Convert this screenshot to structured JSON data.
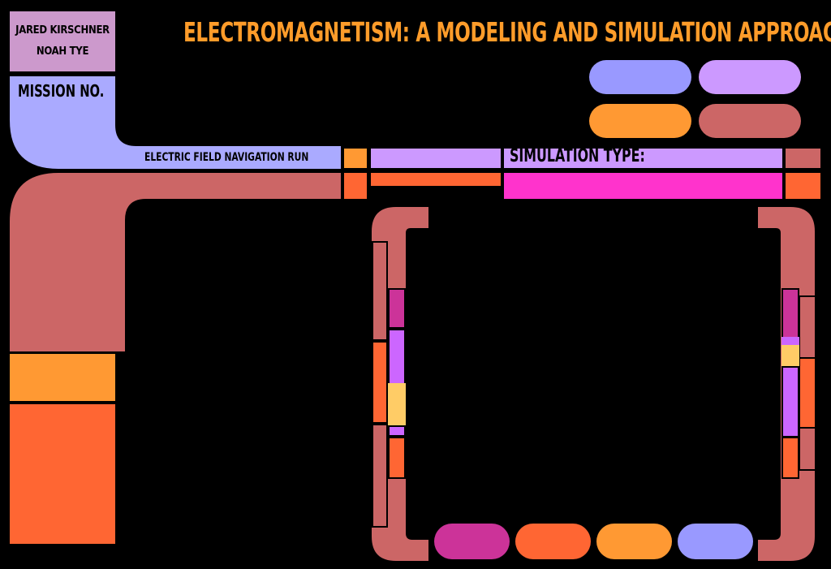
{
  "header": {
    "authors": [
      "JARED KIRSCHNER",
      "NOAH TYE"
    ],
    "title": "ELECTROMAGNETISM: A MODELING AND SIMULATION APPROACH"
  },
  "mission": {
    "label": "MISSION NO.",
    "run_label": "ELECTRIC FIELD NAVIGATION RUN"
  },
  "simulation": {
    "label": "SIMULATION TYPE:"
  },
  "colors": {
    "periwinkle": "#9999ff",
    "lavender": "#cc99ff",
    "orange": "#ff9933",
    "salmon": "#cc6666",
    "red_orange": "#ff6633",
    "magenta": "#ff33cc",
    "plum": "#cc3399",
    "violet": "#cc66ff",
    "gold": "#ffcc66",
    "author_box": "#cc99cc",
    "blue_elbow": "#aaaaff"
  }
}
